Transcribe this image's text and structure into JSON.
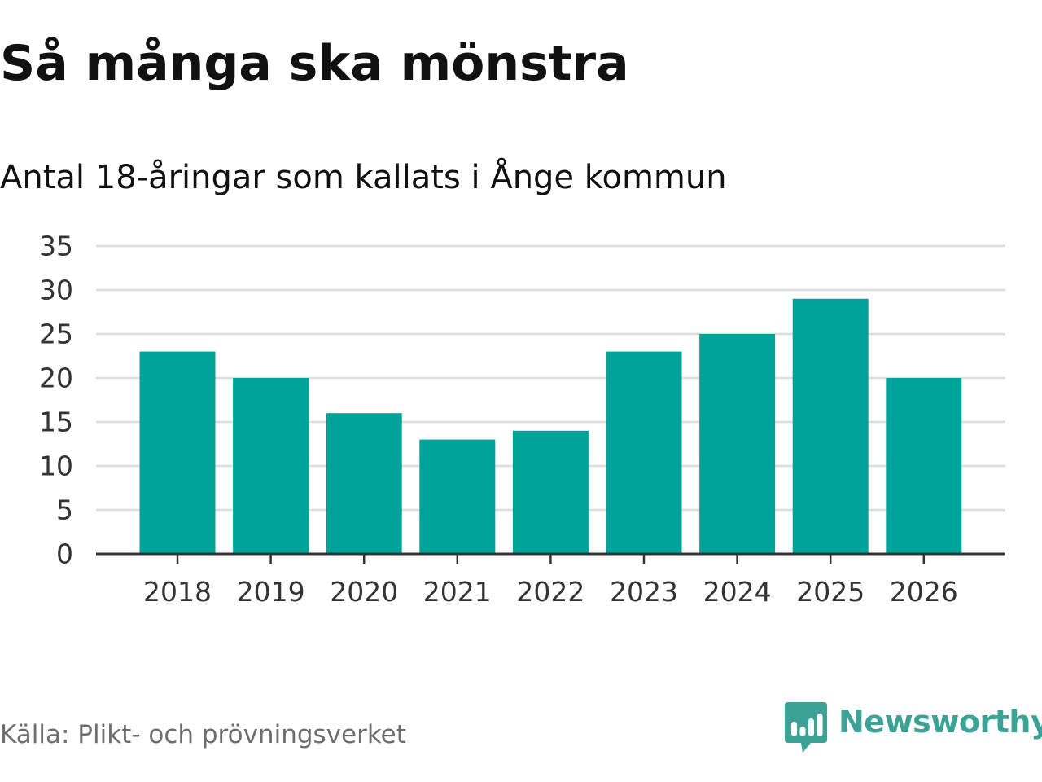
{
  "title": "Så många ska mönstra",
  "subtitle": "Antal 18-åringar som kallats i Ånge kommun",
  "source": "Källa: Plikt- och prövningsverket",
  "brand": {
    "name": "Newsworthy",
    "icon": "newsworthy-logo-icon",
    "color": "#3aa396"
  },
  "colors": {
    "bar": "#00a39a",
    "grid": "#dddddd",
    "axis": "#333333"
  },
  "chart_data": {
    "type": "bar",
    "categories": [
      "2018",
      "2019",
      "2020",
      "2021",
      "2022",
      "2023",
      "2024",
      "2025",
      "2026"
    ],
    "values": [
      23,
      20,
      16,
      13,
      14,
      23,
      25,
      29,
      20
    ],
    "ylim": [
      0,
      35
    ],
    "yticks": [
      0,
      5,
      10,
      15,
      20,
      25,
      30,
      35
    ],
    "grid": true,
    "legend": "none",
    "xlabel": "",
    "ylabel": ""
  }
}
